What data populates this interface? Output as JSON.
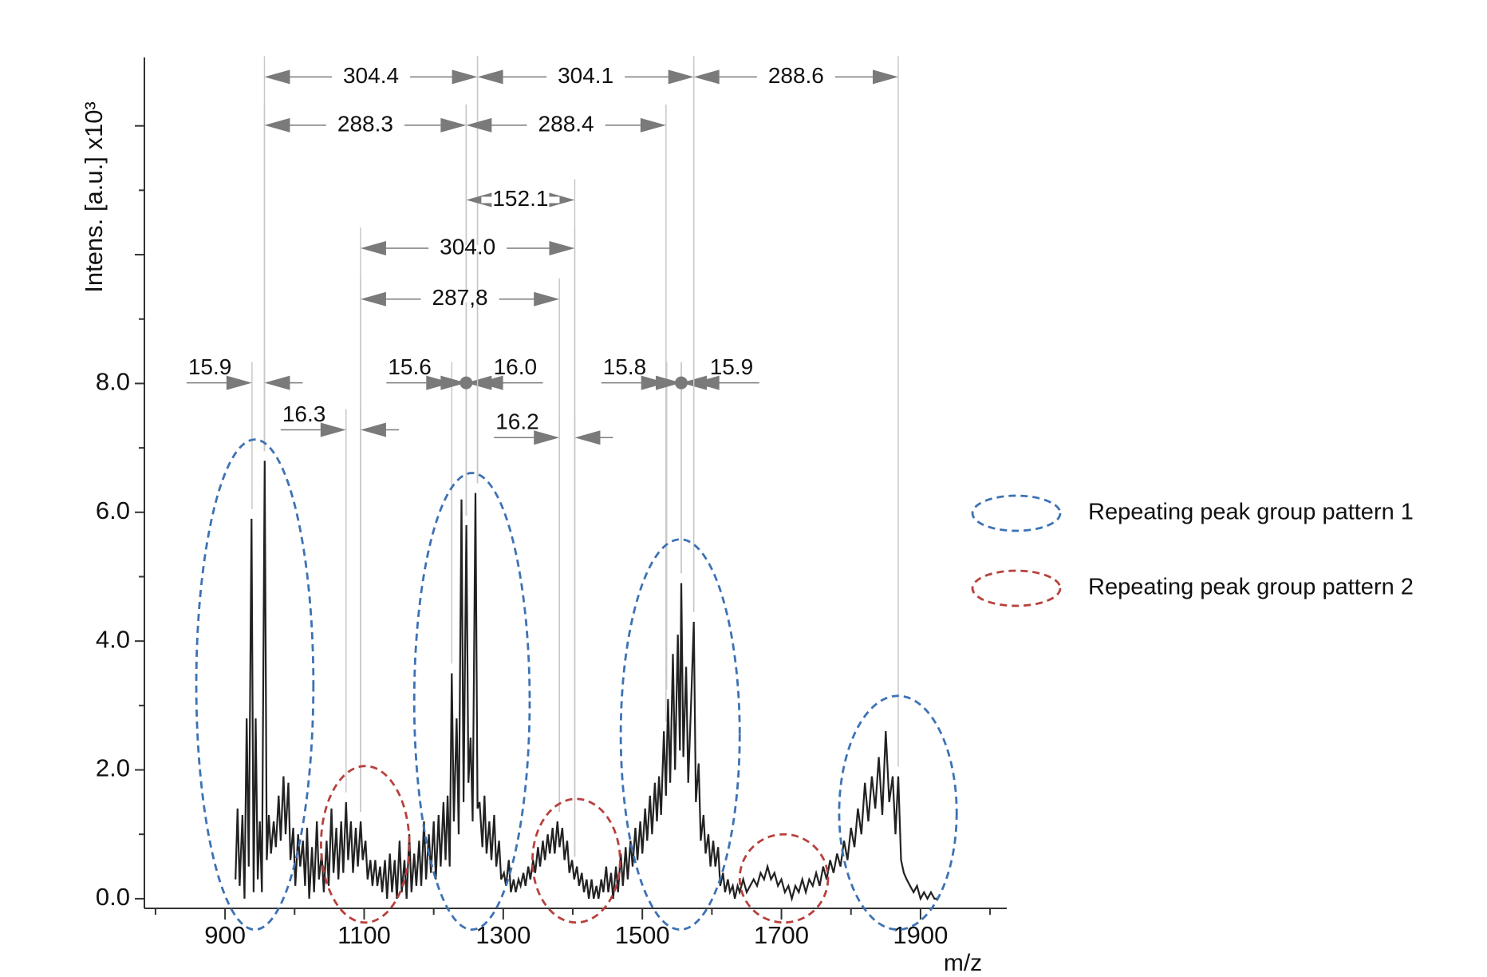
{
  "chart_data": {
    "type": "line",
    "y_label": "Intens. [a.u.] x10³",
    "x_label": "m/z",
    "xlim": [
      784,
      2024
    ],
    "ylim": [
      -0.15,
      13
    ],
    "xticks": [
      900,
      1100,
      1300,
      1500,
      1700,
      1900
    ],
    "minor_xticks": [
      800,
      1000,
      1200,
      1400,
      1600,
      1800,
      2000
    ],
    "yticks": [
      {
        "value": 0,
        "label": "0.0"
      },
      {
        "value": 2,
        "label": "2.0"
      },
      {
        "value": 4,
        "label": "4.0"
      },
      {
        "value": 6,
        "label": "6.0"
      },
      {
        "value": 8,
        "label": "8.0"
      }
    ],
    "yticks_unlabeled": [
      10,
      12
    ],
    "minor_yticks": [
      1,
      3,
      5,
      7,
      9,
      11
    ],
    "color": "#222222",
    "x": [
      915,
      918,
      921,
      925,
      928,
      931,
      934,
      938,
      941,
      944,
      947,
      950,
      953,
      957,
      960,
      963,
      966,
      970,
      973,
      977,
      980,
      984,
      987,
      991,
      994,
      998,
      1001,
      1005,
      1008,
      1012,
      1015,
      1018,
      1021,
      1025,
      1028,
      1032,
      1035,
      1039,
      1042,
      1046,
      1049,
      1053,
      1056,
      1060,
      1063,
      1067,
      1070,
      1074,
      1077,
      1081,
      1084,
      1088,
      1091,
      1095,
      1098,
      1102,
      1105,
      1109,
      1112,
      1116,
      1119,
      1123,
      1126,
      1130,
      1133,
      1137,
      1140,
      1144,
      1147,
      1151,
      1154,
      1158,
      1161,
      1165,
      1168,
      1172,
      1175,
      1179,
      1182,
      1186,
      1189,
      1193,
      1196,
      1200,
      1203,
      1207,
      1210,
      1214,
      1217,
      1220,
      1223,
      1226,
      1229,
      1233,
      1236,
      1240,
      1243,
      1247,
      1250,
      1253,
      1256,
      1260,
      1263,
      1266,
      1270,
      1273,
      1276,
      1280,
      1283,
      1287,
      1290,
      1294,
      1297,
      1301,
      1304,
      1308,
      1311,
      1315,
      1318,
      1322,
      1325,
      1329,
      1332,
      1336,
      1339,
      1343,
      1346,
      1350,
      1353,
      1357,
      1360,
      1364,
      1367,
      1371,
      1374,
      1378,
      1381,
      1385,
      1388,
      1392,
      1395,
      1399,
      1402,
      1406,
      1409,
      1413,
      1416,
      1420,
      1423,
      1427,
      1430,
      1434,
      1437,
      1441,
      1444,
      1448,
      1451,
      1455,
      1458,
      1462,
      1465,
      1469,
      1472,
      1476,
      1479,
      1483,
      1486,
      1490,
      1493,
      1497,
      1500,
      1504,
      1507,
      1511,
      1514,
      1518,
      1521,
      1524,
      1527,
      1531,
      1534,
      1537,
      1540,
      1544,
      1547,
      1551,
      1554,
      1556,
      1559,
      1563,
      1566,
      1570,
      1574,
      1577,
      1581,
      1584,
      1588,
      1591,
      1595,
      1598,
      1602,
      1605,
      1609,
      1612,
      1616,
      1619,
      1623,
      1626,
      1630,
      1633,
      1637,
      1640,
      1645,
      1650,
      1655,
      1660,
      1665,
      1670,
      1675,
      1680,
      1685,
      1690,
      1695,
      1700,
      1705,
      1710,
      1715,
      1720,
      1725,
      1730,
      1735,
      1740,
      1745,
      1750,
      1755,
      1760,
      1765,
      1770,
      1775,
      1780,
      1785,
      1790,
      1795,
      1800,
      1805,
      1810,
      1815,
      1820,
      1825,
      1830,
      1835,
      1840,
      1845,
      1850,
      1855,
      1860,
      1864,
      1868,
      1872,
      1876,
      1880,
      1885,
      1890,
      1895,
      1900,
      1905,
      1910,
      1915,
      1920,
      1925
    ],
    "values": [
      0.3,
      1.4,
      0.2,
      1.3,
      0.0,
      2.8,
      0.5,
      5.9,
      0.1,
      2.8,
      0.3,
      1.2,
      0.1,
      6.8,
      0.6,
      1.3,
      0.7,
      1.2,
      0.8,
      1.6,
      0.9,
      1.9,
      1.0,
      1.8,
      0.6,
      1.1,
      0.2,
      1.0,
      0.5,
      0.9,
      0.2,
      1.1,
      0.0,
      0.8,
      0.1,
      1.2,
      0.3,
      0.7,
      0.1,
      0.9,
      0.2,
      1.4,
      0.4,
      1.1,
      0.3,
      1.2,
      0.4,
      1.5,
      0.6,
      1.2,
      0.4,
      1.1,
      0.5,
      1.2,
      0.6,
      0.9,
      0.3,
      0.6,
      0.2,
      0.6,
      0.2,
      0.5,
      0.1,
      0.6,
      0.0,
      0.7,
      0.1,
      0.6,
      0.0,
      0.9,
      0.1,
      0.6,
      0.0,
      1.0,
      0.1,
      0.7,
      0.2,
      0.9,
      0.2,
      1.2,
      0.3,
      1.0,
      0.4,
      1.2,
      0.3,
      1.3,
      0.5,
      1.5,
      0.6,
      1.6,
      0.5,
      3.5,
      1.2,
      2.8,
      1.0,
      6.2,
      1.5,
      5.8,
      1.8,
      2.5,
      1.2,
      6.3,
      1.4,
      1.5,
      0.8,
      1.6,
      0.7,
      1.2,
      0.6,
      1.3,
      0.5,
      0.9,
      0.3,
      0.4,
      0.2,
      0.6,
      0.1,
      0.3,
      0.1,
      0.3,
      0.2,
      0.4,
      0.2,
      0.5,
      0.3,
      0.6,
      0.4,
      0.8,
      0.5,
      0.9,
      0.6,
      1.0,
      0.7,
      1.1,
      0.7,
      1.2,
      0.8,
      1.1,
      0.6,
      0.9,
      0.4,
      0.6,
      0.3,
      0.5,
      0.2,
      0.4,
      0.1,
      0.3,
      0.0,
      0.3,
      0.0,
      0.2,
      0.0,
      0.3,
      0.1,
      0.5,
      0.1,
      0.4,
      0.0,
      0.5,
      0.1,
      0.7,
      0.2,
      0.8,
      0.3,
      0.9,
      0.5,
      1.1,
      0.6,
      1.2,
      0.7,
      1.4,
      0.9,
      1.6,
      1.0,
      1.8,
      1.2,
      1.9,
      1.3,
      2.6,
      1.6,
      3.1,
      1.8,
      3.8,
      2.0,
      4.1,
      2.3,
      4.9,
      2.2,
      3.6,
      1.8,
      3.0,
      4.3,
      1.5,
      2.1,
      0.9,
      1.3,
      0.7,
      1.0,
      0.5,
      0.9,
      0.5,
      0.8,
      0.2,
      0.4,
      0.1,
      0.3,
      0.1,
      0.2,
      0.0,
      0.2,
      0.1,
      0.3,
      0.1,
      0.2,
      0.3,
      0.2,
      0.4,
      0.3,
      0.5,
      0.3,
      0.4,
      0.2,
      0.3,
      0.1,
      0.2,
      0.0,
      0.2,
      0.1,
      0.3,
      0.1,
      0.3,
      0.2,
      0.4,
      0.2,
      0.5,
      0.3,
      0.6,
      0.4,
      0.7,
      0.5,
      0.9,
      0.6,
      1.1,
      0.8,
      1.4,
      1.0,
      1.8,
      1.2,
      1.9,
      1.4,
      2.2,
      1.3,
      2.6,
      1.5,
      1.9,
      1.0,
      1.9,
      0.6,
      0.4,
      0.3,
      0.2,
      0.1,
      0.2,
      0.0,
      0.1,
      0.0,
      0.1,
      0.0,
      0.0
    ],
    "annotations": [
      {
        "label": "304.4",
        "kind": "span",
        "from": 956.6,
        "to": 1263,
        "level": 12.76
      },
      {
        "label": "304.1",
        "kind": "span",
        "from": 1263,
        "to": 1574,
        "level": 12.76
      },
      {
        "label": "288.6",
        "kind": "span",
        "from": 1574,
        "to": 1868,
        "level": 12.76
      },
      {
        "label": "288.3",
        "kind": "span",
        "from": 956.6,
        "to": 1246.7,
        "level": 12.01
      },
      {
        "label": "288.4",
        "kind": "span",
        "from": 1246.7,
        "to": 1534,
        "level": 12.01
      },
      {
        "label": "152.1",
        "kind": "span",
        "from": 1246.7,
        "to": 1402.8,
        "level": 10.85
      },
      {
        "label": "304.0",
        "kind": "span",
        "from": 1094.8,
        "to": 1402.8,
        "level": 10.1
      },
      {
        "label": "287,8",
        "kind": "span",
        "from": 1094.8,
        "to": 1380.7,
        "level": 9.31
      },
      {
        "label": "15.9",
        "kind": "gap",
        "label_side": "left",
        "from": 938.7,
        "to": 956.6,
        "level": 8.01
      },
      {
        "label": "16.3",
        "kind": "gap",
        "label_side": "left",
        "from": 1074,
        "to": 1094.8,
        "level": 7.28
      },
      {
        "label": "15.6",
        "kind": "gap",
        "label_side": "left",
        "from": 1226,
        "to": 1246.7,
        "level": 8.01
      },
      {
        "label": "16.0",
        "kind": "gap",
        "label_side": "right",
        "from": 1246.7,
        "to": 1263,
        "level": 8.01
      },
      {
        "label": "16.2",
        "kind": "gap",
        "label_side": "left",
        "from": 1380.7,
        "to": 1402.8,
        "level": 7.16
      },
      {
        "label": "15.8",
        "kind": "gap",
        "label_side": "left",
        "from": 1535,
        "to": 1556,
        "level": 8.01
      },
      {
        "label": "15.9",
        "kind": "gap",
        "label_side": "right",
        "from": 1556,
        "to": 1574,
        "level": 8.01
      }
    ],
    "legend": [
      {
        "name": "Repeating peak group pattern 1",
        "color": "#3d72b4"
      },
      {
        "name": "Repeating peak group pattern 2",
        "color": "#b8403c"
      }
    ],
    "groups": [
      {
        "pattern": 0,
        "x": [
          858.6,
          1027
        ],
        "y": [
          -0.48,
          7.13
        ]
      },
      {
        "pattern": 1,
        "x": [
          1038,
          1165
        ],
        "y": [
          -0.37,
          2.06
        ]
      },
      {
        "pattern": 0,
        "x": [
          1172,
          1338
        ],
        "y": [
          -0.48,
          6.61
        ]
      },
      {
        "pattern": 1,
        "x": [
          1342,
          1468
        ],
        "y": [
          -0.37,
          1.55
        ]
      },
      {
        "pattern": 0,
        "x": [
          1469,
          1640
        ],
        "y": [
          -0.48,
          5.58
        ]
      },
      {
        "pattern": 1,
        "x": [
          1640,
          1767
        ],
        "y": [
          -0.37,
          1.0
        ]
      },
      {
        "pattern": 0,
        "x": [
          1783,
          1952
        ],
        "y": [
          -0.48,
          3.15
        ]
      }
    ]
  }
}
